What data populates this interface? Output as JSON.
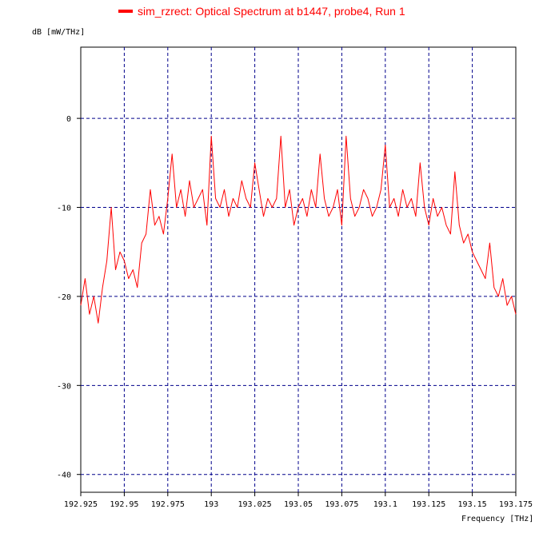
{
  "chart_data": {
    "type": "line",
    "legend": {
      "label": "sim_rzrect: Optical Spectrum at b1447, probe4, Run 1",
      "color": "#ff0000",
      "placement": "top-center"
    },
    "ylabel": "dB  [mW/THz]",
    "xlabel": "Frequency  [THz]",
    "xlim": [
      192.925,
      193.175
    ],
    "ylim": [
      -42,
      8
    ],
    "grid": true,
    "grid_color": "#00008b",
    "series_color": "#ff0000",
    "x_ticks": [
      "192.925",
      "192.95",
      "192.975",
      "193",
      "193.025",
      "193.05",
      "193.075",
      "193.1",
      "193.125",
      "193.15",
      "193.175"
    ],
    "x_tick_values": [
      192.925,
      192.95,
      192.975,
      193.0,
      193.025,
      193.05,
      193.075,
      193.1,
      193.125,
      193.15,
      193.175
    ],
    "y_ticks": [
      "0",
      "-10",
      "-20",
      "-30",
      "-40"
    ],
    "y_tick_values": [
      0,
      -10,
      -20,
      -30,
      -40
    ],
    "series": [
      {
        "x": [
          192.925,
          192.9275,
          192.93,
          192.9325,
          192.935,
          192.9375,
          192.94,
          192.9425,
          192.945,
          192.9475,
          192.95,
          192.9525,
          192.955,
          192.9575,
          192.96,
          192.9625,
          192.965,
          192.9675,
          192.97,
          192.9725,
          192.975,
          192.9775,
          192.98,
          192.9825,
          192.985,
          192.9875,
          192.99,
          192.9925,
          192.995,
          192.9975,
          193.0,
          193.0025,
          193.005,
          193.0075,
          193.01,
          193.0125,
          193.015,
          193.0175,
          193.02,
          193.0225,
          193.025,
          193.0275,
          193.03,
          193.0325,
          193.035,
          193.0375,
          193.04,
          193.0425,
          193.045,
          193.0475,
          193.05,
          193.0525,
          193.055,
          193.0575,
          193.06,
          193.0625,
          193.065,
          193.0675,
          193.07,
          193.0725,
          193.075,
          193.0775,
          193.08,
          193.0825,
          193.085,
          193.0875,
          193.09,
          193.0925,
          193.095,
          193.0975,
          193.1,
          193.1025,
          193.105,
          193.1075,
          193.11,
          193.1125,
          193.115,
          193.1175,
          193.12,
          193.1225,
          193.125,
          193.1275,
          193.13,
          193.1325,
          193.135,
          193.1375,
          193.14,
          193.1425,
          193.145,
          193.1475,
          193.15,
          193.1525,
          193.155,
          193.1575,
          193.16,
          193.1625,
          193.165,
          193.1675,
          193.17,
          193.1725,
          193.175
        ],
        "y": [
          -21,
          -18,
          -22,
          -20,
          -23,
          -19,
          -16,
          -10,
          -17,
          -15,
          -16,
          -18,
          -17,
          -19,
          -14,
          -13,
          -8,
          -12,
          -11,
          -13,
          -9,
          -4,
          -10,
          -8,
          -11,
          -7,
          -10,
          -9,
          -8,
          -12,
          -2,
          -9,
          -10,
          -8,
          -11,
          -9,
          -10,
          -7,
          -9,
          -10,
          -5,
          -8,
          -11,
          -9,
          -10,
          -9,
          -2,
          -10,
          -8,
          -12,
          -10,
          -9,
          -11,
          -8,
          -10,
          -4,
          -9,
          -11,
          -10,
          -8,
          -12,
          -2,
          -9,
          -11,
          -10,
          -8,
          -9,
          -11,
          -10,
          -8,
          -3,
          -10,
          -9,
          -11,
          -8,
          -10,
          -9,
          -11,
          -5,
          -10,
          -12,
          -9,
          -11,
          -10,
          -12,
          -13,
          -6,
          -12,
          -14,
          -13,
          -15,
          -16,
          -17,
          -18,
          -14,
          -19,
          -20,
          -18,
          -21,
          -20,
          -22
        ],
        "color": "#ff0000"
      }
    ]
  }
}
